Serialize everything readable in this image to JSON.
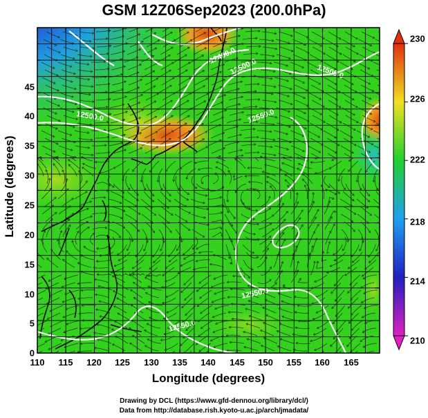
{
  "title": "GSM 12Z06Sep2023 (200.0hPa)",
  "x_axis": {
    "label": "Longitude (degrees)",
    "range": [
      110,
      170
    ],
    "ticks": [
      "110",
      "115",
      "120",
      "125",
      "130",
      "135",
      "140",
      "145",
      "150",
      "155",
      "160",
      "165"
    ]
  },
  "y_axis": {
    "label": "Latitude  (degrees)",
    "range": [
      0,
      50
    ],
    "ticks": [
      "0",
      "5",
      "10",
      "15",
      "20",
      "25",
      "30",
      "35",
      "40",
      "45"
    ]
  },
  "colorbar": {
    "range": [
      210,
      230
    ],
    "ticks": [
      "210",
      "214",
      "218",
      "222",
      "226",
      "230"
    ],
    "colors": [
      "#e020c0",
      "#2020c0",
      "#20a0f0",
      "#20d030",
      "#f0e020",
      "#e03010"
    ]
  },
  "contour_labels": [
    "12400.0",
    "12500.0",
    "12500.0",
    "12500.0",
    "12550.0",
    "12550.0",
    "12550.0"
  ],
  "credits": [
    "Drawing by DCL (https://www.gfd-dennou.org/library/dcl/)",
    "Data from http://database.rish.kyoto-u.ac.jp/arch/jmadata/"
  ],
  "map_style": {
    "field_base": "#34d21e",
    "coast_color": "#000000",
    "contour_color": "#ffffff",
    "grid": true
  }
}
